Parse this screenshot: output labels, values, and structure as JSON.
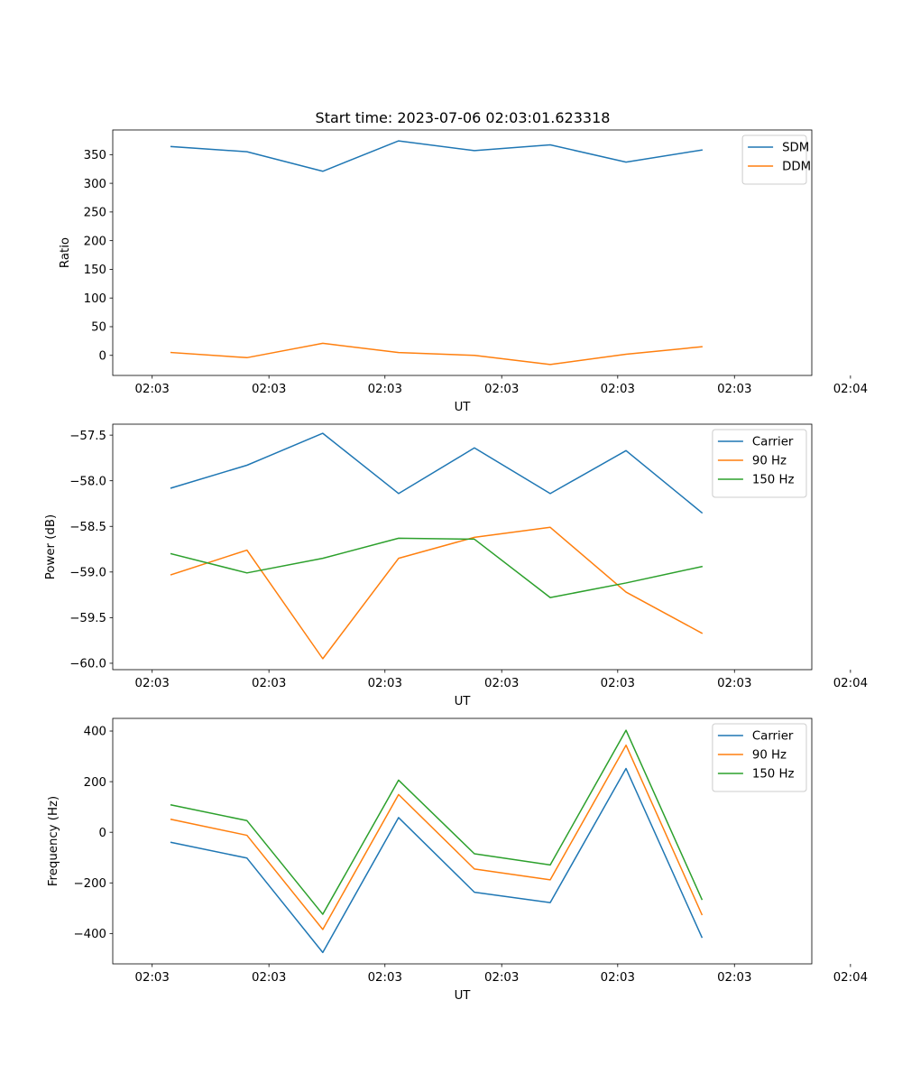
{
  "figure_title": "Start time: 2023-07-06 02:03:01.623318",
  "colors": {
    "blue": "#1f77b4",
    "orange": "#ff7f0e",
    "green": "#2ca02c"
  },
  "chart_data": [
    {
      "type": "line",
      "title": "Start time: 2023-07-06 02:03:01.623318",
      "xlabel": "UT",
      "ylabel": "Ratio",
      "x": [
        1,
        2,
        3,
        4,
        5,
        6,
        7,
        8
      ],
      "xlim": [
        0.23,
        9.45
      ],
      "xticks": [
        0.75,
        2.29,
        3.82,
        5.36,
        6.89,
        8.43,
        9.96
      ],
      "xtick_labels": [
        "02:03",
        "02:03",
        "02:03",
        "02:03",
        "02:03",
        "02:03",
        "02:04"
      ],
      "ylim": [
        -35,
        393
      ],
      "yticks": [
        0,
        50,
        100,
        150,
        200,
        250,
        300,
        350
      ],
      "ytick_labels": [
        "0",
        "50",
        "100",
        "150",
        "200",
        "250",
        "300",
        "350"
      ],
      "legend_loc": "upper right",
      "series": [
        {
          "name": "SDM",
          "color": "#1f77b4",
          "values": [
            364,
            355,
            321,
            374,
            357,
            367,
            337,
            358
          ]
        },
        {
          "name": "DDM",
          "color": "#ff7f0e",
          "values": [
            5,
            -4,
            21,
            5,
            0,
            -16,
            2,
            15
          ]
        }
      ]
    },
    {
      "type": "line",
      "title": "",
      "xlabel": "UT",
      "ylabel": "Power (dB)",
      "x": [
        1,
        2,
        3,
        4,
        5,
        6,
        7,
        8
      ],
      "xlim": [
        0.23,
        9.45
      ],
      "xticks": [
        0.75,
        2.29,
        3.82,
        5.36,
        6.89,
        8.43,
        9.96
      ],
      "xtick_labels": [
        "02:03",
        "02:03",
        "02:03",
        "02:03",
        "02:03",
        "02:03",
        "02:04"
      ],
      "ylim": [
        -60.07,
        -57.38
      ],
      "yticks": [
        -60.0,
        -59.5,
        -59.0,
        -58.5,
        -58.0,
        -57.5
      ],
      "ytick_labels": [
        "−60.0",
        "−59.5",
        "−59.0",
        "−58.5",
        "−58.0",
        "−57.5"
      ],
      "legend_loc": "upper right",
      "series": [
        {
          "name": "Carrier",
          "color": "#1f77b4",
          "values": [
            -58.08,
            -57.83,
            -57.48,
            -58.14,
            -57.64,
            -58.14,
            -57.67,
            -58.35
          ]
        },
        {
          "name": "90 Hz",
          "color": "#ff7f0e",
          "values": [
            -59.03,
            -58.76,
            -59.95,
            -58.85,
            -58.62,
            -58.51,
            -59.22,
            -59.67
          ]
        },
        {
          "name": "150 Hz",
          "color": "#2ca02c",
          "values": [
            -58.8,
            -59.01,
            -58.85,
            -58.63,
            -58.64,
            -59.28,
            -59.12,
            -58.94
          ]
        }
      ]
    },
    {
      "type": "line",
      "title": "",
      "xlabel": "UT",
      "ylabel": "Frequency (Hz)",
      "x": [
        1,
        2,
        3,
        4,
        5,
        6,
        7,
        8
      ],
      "xlim": [
        0.23,
        9.45
      ],
      "xticks": [
        0.75,
        2.29,
        3.82,
        5.36,
        6.89,
        8.43,
        9.96
      ],
      "xtick_labels": [
        "02:03",
        "02:03",
        "02:03",
        "02:03",
        "02:03",
        "02:03",
        "02:04"
      ],
      "ylim": [
        -520,
        450
      ],
      "yticks": [
        -400,
        -200,
        0,
        200,
        400
      ],
      "ytick_labels": [
        "−400",
        "−200",
        "0",
        "200",
        "400"
      ],
      "legend_loc": "upper right",
      "series": [
        {
          "name": "Carrier",
          "color": "#1f77b4",
          "values": [
            -40,
            -102,
            -475,
            58,
            -237,
            -278,
            252,
            -415
          ]
        },
        {
          "name": "90 Hz",
          "color": "#ff7f0e",
          "values": [
            51,
            -12,
            -384,
            149,
            -145,
            -188,
            344,
            -325
          ]
        },
        {
          "name": "150 Hz",
          "color": "#2ca02c",
          "values": [
            108,
            46,
            -324,
            206,
            -85,
            -129,
            403,
            -265
          ]
        }
      ]
    }
  ]
}
